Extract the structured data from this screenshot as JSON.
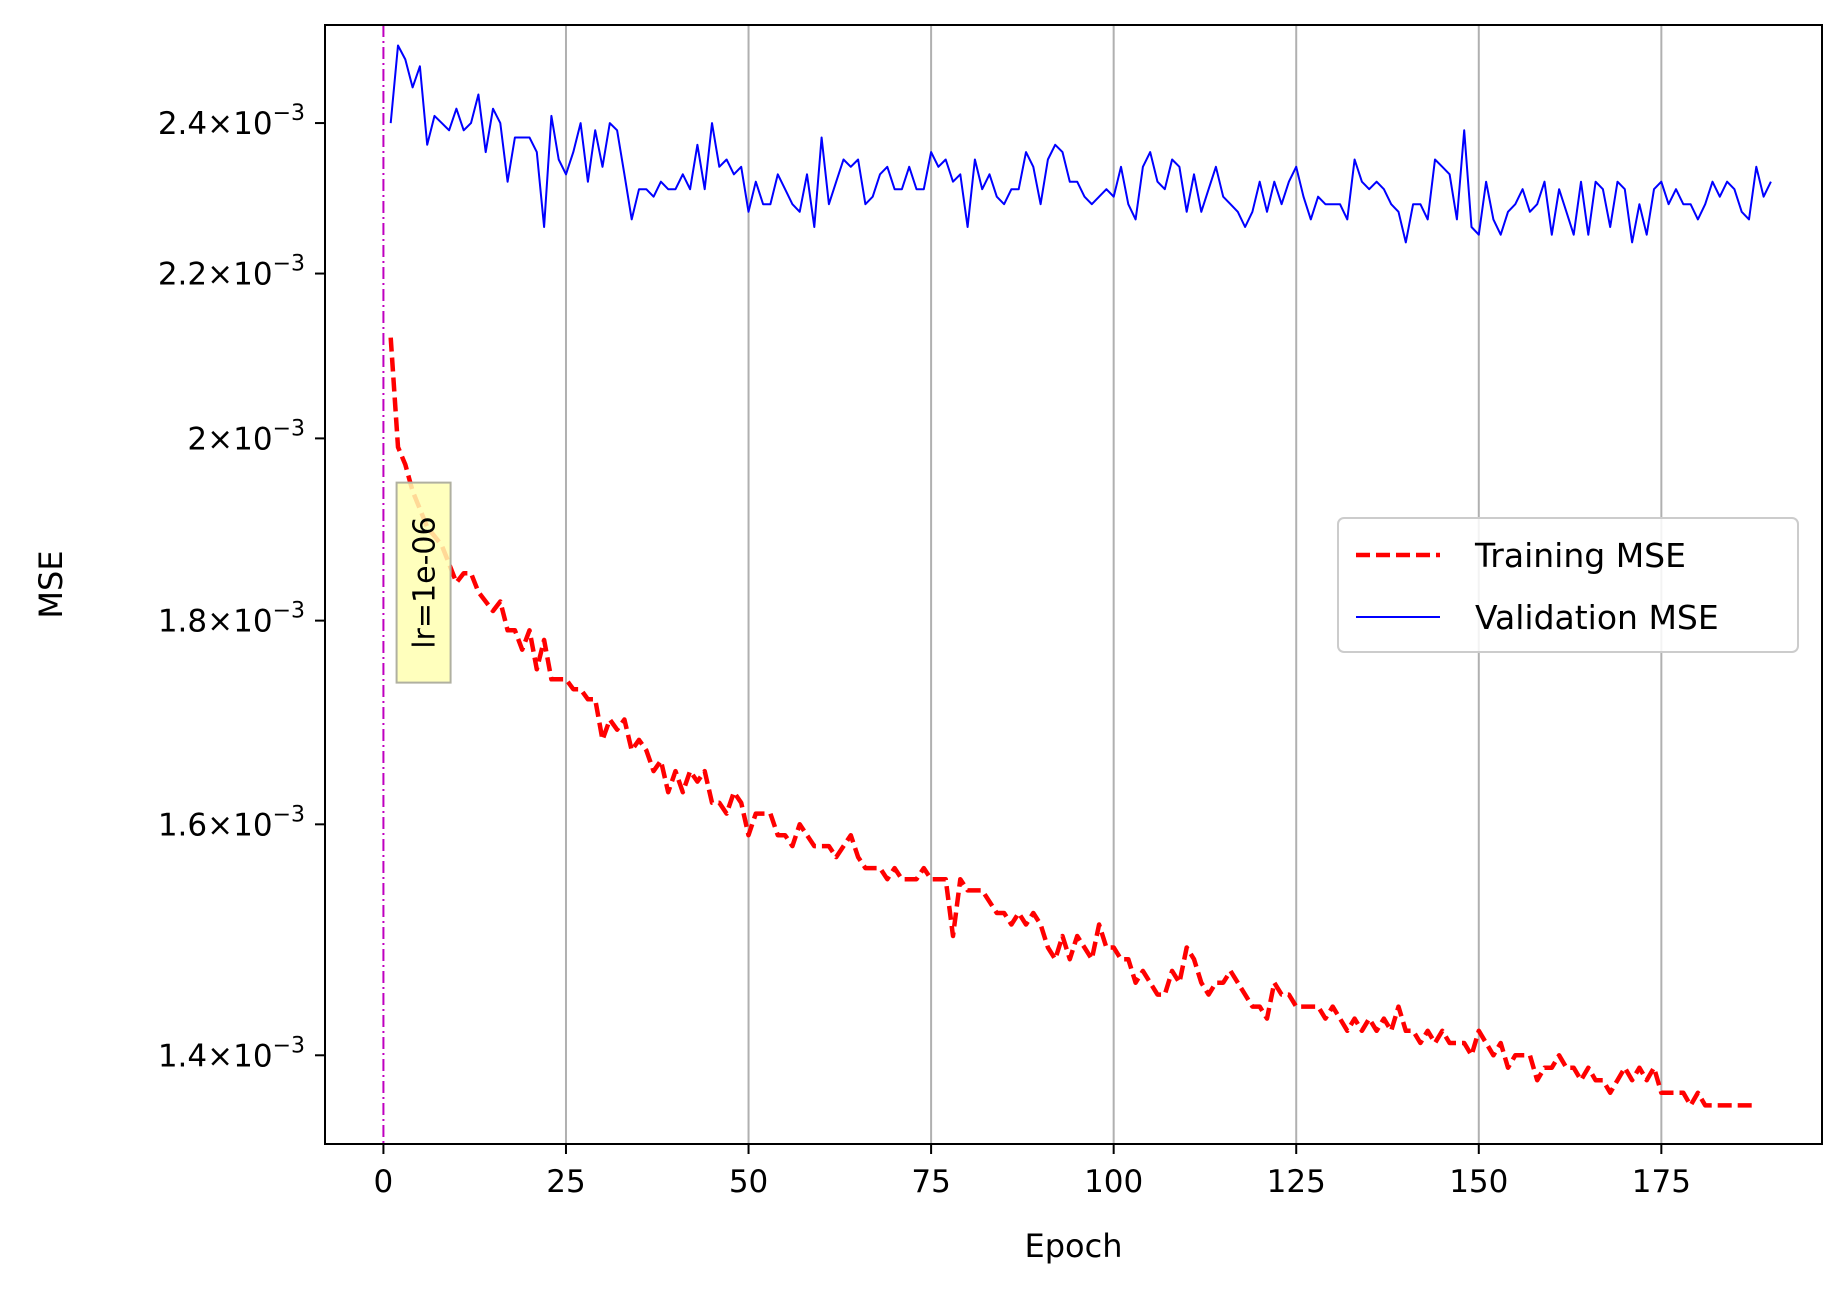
{
  "chart_data": {
    "type": "line",
    "title": "",
    "xlabel": "Epoch",
    "ylabel": "MSE",
    "yscale": "log",
    "xlim": [
      -8,
      197
    ],
    "ylim": [
      0.00133,
      0.00254
    ],
    "grid": "x-major",
    "legend_position": "center-right",
    "x_ticks": [
      {
        "value": 0,
        "label": "0"
      },
      {
        "value": 25,
        "label": "25"
      },
      {
        "value": 50,
        "label": "50"
      },
      {
        "value": 75,
        "label": "75"
      },
      {
        "value": 100,
        "label": "100"
      },
      {
        "value": 125,
        "label": "125"
      },
      {
        "value": 150,
        "label": "150"
      },
      {
        "value": 175,
        "label": "175"
      }
    ],
    "y_ticks": [
      {
        "value": 0.0014,
        "mantissa": "1.4",
        "base": "10",
        "exponent": "−3"
      },
      {
        "value": 0.0016,
        "mantissa": "1.6",
        "base": "10",
        "exponent": "−3"
      },
      {
        "value": 0.0018,
        "mantissa": "1.8",
        "base": "10",
        "exponent": "−3"
      },
      {
        "value": 0.002,
        "mantissa": "2",
        "base": "10",
        "exponent": "−3"
      },
      {
        "value": 0.0022,
        "mantissa": "2.2",
        "base": "10",
        "exponent": "−3"
      },
      {
        "value": 0.0024,
        "mantissa": "2.4",
        "base": "10",
        "exponent": "−3"
      }
    ],
    "annotations": [
      {
        "type": "vline",
        "x": 0,
        "color": "#bf00bf",
        "style": "dashdot"
      },
      {
        "type": "text",
        "x": 5.5,
        "y": 0.00184,
        "text": "lr=1e-06",
        "rotation": -90,
        "box_color": "#ffffb2"
      }
    ],
    "series": [
      {
        "name": "Training MSE",
        "color": "#ff0000",
        "style": "dashed",
        "x_start": 1,
        "values": [
          0.00212,
          0.00199,
          0.00197,
          0.00194,
          0.00192,
          0.0019,
          0.00189,
          0.00188,
          0.00186,
          0.00184,
          0.00185,
          0.00185,
          0.00183,
          0.00182,
          0.00181,
          0.00182,
          0.00179,
          0.00179,
          0.00177,
          0.00179,
          0.00175,
          0.00178,
          0.00174,
          0.00174,
          0.00174,
          0.00173,
          0.00173,
          0.00172,
          0.00172,
          0.00168,
          0.0017,
          0.00169,
          0.0017,
          0.00167,
          0.00168,
          0.00167,
          0.00165,
          0.00166,
          0.00163,
          0.00165,
          0.00163,
          0.00165,
          0.00164,
          0.00165,
          0.00162,
          0.00162,
          0.00161,
          0.00163,
          0.00162,
          0.00159,
          0.00161,
          0.00161,
          0.00161,
          0.00159,
          0.00159,
          0.00158,
          0.0016,
          0.00159,
          0.00158,
          0.00158,
          0.00158,
          0.00157,
          0.00158,
          0.00159,
          0.00157,
          0.00156,
          0.00156,
          0.00156,
          0.00155,
          0.00156,
          0.00155,
          0.00155,
          0.00155,
          0.00156,
          0.00155,
          0.00155,
          0.00155,
          0.0015,
          0.00155,
          0.00154,
          0.00154,
          0.00154,
          0.00153,
          0.00152,
          0.00152,
          0.00151,
          0.00152,
          0.00151,
          0.00152,
          0.00151,
          0.00149,
          0.00148,
          0.0015,
          0.00148,
          0.0015,
          0.00149,
          0.00148,
          0.00151,
          0.00149,
          0.00149,
          0.00148,
          0.00148,
          0.00146,
          0.00147,
          0.00146,
          0.00145,
          0.00145,
          0.00147,
          0.00146,
          0.00149,
          0.00148,
          0.00146,
          0.00145,
          0.00146,
          0.00146,
          0.00147,
          0.00146,
          0.00145,
          0.00144,
          0.00144,
          0.00143,
          0.00146,
          0.00145,
          0.00145,
          0.00144,
          0.00144,
          0.00144,
          0.00144,
          0.00143,
          0.00144,
          0.00143,
          0.00142,
          0.00143,
          0.00142,
          0.00143,
          0.00142,
          0.00143,
          0.00142,
          0.00144,
          0.00142,
          0.00142,
          0.00141,
          0.00142,
          0.00141,
          0.00142,
          0.00141,
          0.00141,
          0.00141,
          0.0014,
          0.00142,
          0.00141,
          0.0014,
          0.00141,
          0.00139,
          0.0014,
          0.0014,
          0.0014,
          0.00138,
          0.00139,
          0.00139,
          0.0014,
          0.00139,
          0.00139,
          0.00138,
          0.00139,
          0.00138,
          0.00138,
          0.00137,
          0.00138,
          0.00139,
          0.00138,
          0.00139,
          0.00138,
          0.00139,
          0.00137,
          0.00137,
          0.00137,
          0.00137,
          0.00136,
          0.00137,
          0.00136,
          0.00136,
          0.00136,
          0.00136,
          0.00136,
          0.00136,
          0.00136,
          0.00136
        ]
      },
      {
        "name": "Validation MSE",
        "color": "#0000ff",
        "style": "solid",
        "x_start": 1,
        "values": [
          0.0024,
          0.00251,
          0.00249,
          0.00245,
          0.00248,
          0.00237,
          0.00241,
          0.0024,
          0.00239,
          0.00242,
          0.00239,
          0.0024,
          0.00244,
          0.00236,
          0.00242,
          0.0024,
          0.00232,
          0.00238,
          0.00238,
          0.00238,
          0.00236,
          0.00226,
          0.00241,
          0.00235,
          0.00233,
          0.00236,
          0.0024,
          0.00232,
          0.00239,
          0.00234,
          0.0024,
          0.00239,
          0.00233,
          0.00227,
          0.00231,
          0.00231,
          0.0023,
          0.00232,
          0.00231,
          0.00231,
          0.00233,
          0.00231,
          0.00237,
          0.00231,
          0.0024,
          0.00234,
          0.00235,
          0.00233,
          0.00234,
          0.00228,
          0.00232,
          0.00229,
          0.00229,
          0.00233,
          0.00231,
          0.00229,
          0.00228,
          0.00233,
          0.00226,
          0.00238,
          0.00229,
          0.00232,
          0.00235,
          0.00234,
          0.00235,
          0.00229,
          0.0023,
          0.00233,
          0.00234,
          0.00231,
          0.00231,
          0.00234,
          0.00231,
          0.00231,
          0.00236,
          0.00234,
          0.00235,
          0.00232,
          0.00233,
          0.00226,
          0.00235,
          0.00231,
          0.00233,
          0.0023,
          0.00229,
          0.00231,
          0.00231,
          0.00236,
          0.00234,
          0.00229,
          0.00235,
          0.00237,
          0.00236,
          0.00232,
          0.00232,
          0.0023,
          0.00229,
          0.0023,
          0.00231,
          0.0023,
          0.00234,
          0.00229,
          0.00227,
          0.00234,
          0.00236,
          0.00232,
          0.00231,
          0.00235,
          0.00234,
          0.00228,
          0.00233,
          0.00228,
          0.00231,
          0.00234,
          0.0023,
          0.00229,
          0.00228,
          0.00226,
          0.00228,
          0.00232,
          0.00228,
          0.00232,
          0.00229,
          0.00232,
          0.00234,
          0.0023,
          0.00227,
          0.0023,
          0.00229,
          0.00229,
          0.00229,
          0.00227,
          0.00235,
          0.00232,
          0.00231,
          0.00232,
          0.00231,
          0.00229,
          0.00228,
          0.00224,
          0.00229,
          0.00229,
          0.00227,
          0.00235,
          0.00234,
          0.00233,
          0.00227,
          0.00239,
          0.00226,
          0.00225,
          0.00232,
          0.00227,
          0.00225,
          0.00228,
          0.00229,
          0.00231,
          0.00228,
          0.00229,
          0.00232,
          0.00225,
          0.00231,
          0.00228,
          0.00225,
          0.00232,
          0.00225,
          0.00232,
          0.00231,
          0.00226,
          0.00232,
          0.00231,
          0.00224,
          0.00229,
          0.00225,
          0.00231,
          0.00232,
          0.00229,
          0.00231,
          0.00229,
          0.00229,
          0.00227,
          0.00229,
          0.00232,
          0.0023,
          0.00232,
          0.00231,
          0.00228,
          0.00227,
          0.00234,
          0.0023,
          0.00232
        ]
      }
    ]
  }
}
